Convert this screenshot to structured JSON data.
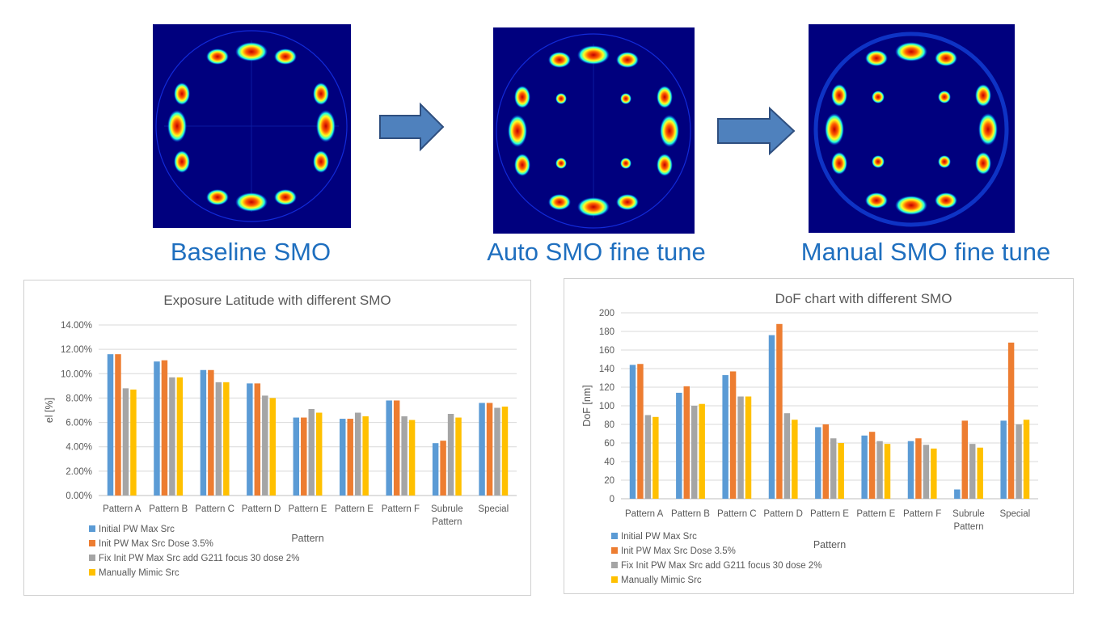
{
  "captions": {
    "baseline": "Baseline SMO",
    "auto": "Auto SMO fine tune",
    "manual": "Manual SMO fine tune"
  },
  "colors": {
    "caption": "#1f6fbf",
    "arrow_fill": "#4f81bd",
    "arrow_stroke": "#2f4f7f",
    "source_background": "#00007e",
    "series": [
      "#5b9bd5",
      "#ed7d31",
      "#a5a5a5",
      "#ffc000"
    ]
  },
  "chart_data": [
    {
      "type": "bar",
      "title": "Exposure Latitude with different SMO",
      "xlabel": "Pattern",
      "ylabel": "el [%]",
      "ylim": [
        0,
        14
      ],
      "yticks": [
        "0.00%",
        "2.00%",
        "4.00%",
        "6.00%",
        "8.00%",
        "10.00%",
        "12.00%",
        "14.00%"
      ],
      "grid": true,
      "legend_position": "bottom-left",
      "categories": [
        "Pattern A",
        "Pattern B",
        "Pattern C",
        "Pattern D",
        "Pattern E",
        "Pattern E",
        "Pattern F",
        "Subrule Pattern",
        "Special"
      ],
      "series": [
        {
          "name": "Initial PW Max Src",
          "values": [
            11.6,
            11.0,
            10.3,
            9.2,
            6.4,
            6.3,
            7.8,
            4.3,
            7.6
          ]
        },
        {
          "name": "Init PW Max Src Dose 3.5%",
          "values": [
            11.6,
            11.1,
            10.3,
            9.2,
            6.4,
            6.3,
            7.8,
            4.5,
            7.6
          ]
        },
        {
          "name": "Fix Init PW Max Src add G211 focus 30 dose 2%",
          "values": [
            8.8,
            9.7,
            9.3,
            8.2,
            7.1,
            6.8,
            6.5,
            6.7,
            7.2
          ]
        },
        {
          "name": "Manually Mimic Src",
          "values": [
            8.7,
            9.7,
            9.3,
            8.0,
            6.8,
            6.5,
            6.2,
            6.4,
            7.3
          ]
        }
      ]
    },
    {
      "type": "bar",
      "title": "DoF chart with different SMO",
      "xlabel": "Pattern",
      "ylabel": "DoF [nm]",
      "ylim": [
        0,
        200
      ],
      "yticks": [
        "0",
        "20",
        "40",
        "60",
        "80",
        "100",
        "120",
        "140",
        "160",
        "180",
        "200"
      ],
      "grid": true,
      "legend_position": "bottom-left",
      "categories": [
        "Pattern A",
        "Pattern B",
        "Pattern C",
        "Pattern D",
        "Pattern E",
        "Pattern E",
        "Pattern F",
        "Subrule Pattern",
        "Special"
      ],
      "series": [
        {
          "name": "Initial PW Max Src",
          "values": [
            144,
            114,
            133,
            176,
            77,
            68,
            62,
            10,
            84
          ]
        },
        {
          "name": "Init PW Max Src Dose 3.5%",
          "values": [
            145,
            121,
            137,
            188,
            80,
            72,
            65,
            84,
            168
          ]
        },
        {
          "name": "Fix Init PW Max Src add G211 focus 30 dose 2%",
          "values": [
            90,
            100,
            110,
            92,
            65,
            62,
            58,
            59,
            80
          ]
        },
        {
          "name": "Manually Mimic Src",
          "values": [
            88,
            102,
            110,
            85,
            60,
            59,
            54,
            55,
            85
          ]
        }
      ]
    }
  ]
}
